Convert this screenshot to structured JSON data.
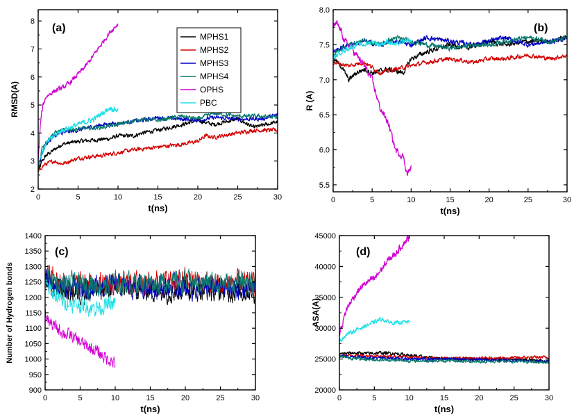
{
  "colors": {
    "MPHS1": "#000000",
    "MPHS2": "#d40000",
    "MPHS3": "#0000c0",
    "MPHS4": "#0a7a6e",
    "OPHS": "#d000d0",
    "PBC": "#1ee0e6"
  },
  "legend": [
    "MPHS1",
    "MPHS2",
    "MPHS3",
    "MPHS4",
    "OPHS",
    "PBC"
  ],
  "chart_data": [
    {
      "id": "a",
      "type": "line",
      "panel_label": "(a)",
      "xlabel": "t(ns)",
      "ylabel": "RMSD(A)",
      "xlim": [
        0,
        30
      ],
      "ylim": [
        2,
        8.4
      ],
      "xticks": [
        0,
        5,
        10,
        15,
        20,
        25,
        30
      ],
      "yticks": [
        2,
        3,
        4,
        5,
        6,
        7,
        8
      ],
      "legend_position": "top-center",
      "noise": [
        0.06,
        0.06,
        0.06,
        0.06,
        0.07,
        0.08
      ],
      "series": [
        {
          "name": "MPHS1",
          "x": [
            0,
            0.5,
            1,
            2,
            3,
            5,
            7,
            9,
            10,
            12,
            13,
            15,
            18,
            20,
            22,
            25,
            27,
            30
          ],
          "y": [
            2.6,
            3.0,
            3.2,
            3.4,
            3.6,
            3.7,
            3.75,
            3.8,
            3.9,
            3.9,
            4.0,
            4.1,
            4.3,
            4.45,
            4.3,
            4.5,
            4.2,
            4.4
          ]
        },
        {
          "name": "MPHS2",
          "x": [
            0,
            0.5,
            1,
            2,
            3,
            5,
            8,
            10,
            12,
            15,
            18,
            20,
            21,
            22,
            25,
            27,
            30
          ],
          "y": [
            2.6,
            2.8,
            2.9,
            3.0,
            2.9,
            3.1,
            3.2,
            3.3,
            3.4,
            3.5,
            3.6,
            3.7,
            3.9,
            3.85,
            4.0,
            4.1,
            4.1
          ]
        },
        {
          "name": "MPHS3",
          "x": [
            0,
            0.5,
            1,
            2,
            3,
            5,
            8,
            10,
            13,
            15,
            18,
            20,
            22,
            25,
            28,
            30
          ],
          "y": [
            2.7,
            3.3,
            3.6,
            3.9,
            4.0,
            4.1,
            4.3,
            4.35,
            4.45,
            4.55,
            4.5,
            4.45,
            4.55,
            4.5,
            4.5,
            4.65
          ]
        },
        {
          "name": "MPHS4",
          "x": [
            0,
            0.5,
            1,
            2,
            3,
            5,
            8,
            10,
            13,
            15,
            18,
            20,
            22,
            25,
            28,
            30
          ],
          "y": [
            2.7,
            3.5,
            3.7,
            4.0,
            4.1,
            4.15,
            4.2,
            4.3,
            4.5,
            4.45,
            4.6,
            4.5,
            4.7,
            4.6,
            4.6,
            4.55
          ]
        },
        {
          "name": "OPHS",
          "x": [
            0,
            0.3,
            0.6,
            1,
            1.5,
            2,
            3,
            4,
            5,
            6,
            7,
            8,
            9,
            10
          ],
          "y": [
            3.0,
            4.4,
            5.0,
            5.3,
            5.4,
            5.5,
            5.6,
            5.8,
            6.1,
            6.4,
            6.8,
            7.2,
            7.6,
            7.9
          ]
        },
        {
          "name": "PBC",
          "x": [
            0,
            0.5,
            1,
            2,
            3,
            4,
            5,
            6,
            7,
            8,
            9,
            10
          ],
          "y": [
            2.9,
            3.3,
            3.6,
            3.9,
            4.1,
            4.2,
            4.3,
            4.4,
            4.5,
            4.7,
            4.9,
            4.8
          ]
        }
      ]
    },
    {
      "id": "b",
      "type": "line",
      "panel_label": "(b)",
      "xlabel": "t(ns)",
      "ylabel": "R (A)",
      "xlim": [
        0,
        30
      ],
      "ylim": [
        5.4,
        8.0
      ],
      "xticks": [
        0,
        5,
        10,
        15,
        20,
        25,
        30
      ],
      "yticks": [
        5.5,
        6.0,
        6.5,
        7.0,
        7.5,
        8.0
      ],
      "noise": [
        0.03,
        0.025,
        0.03,
        0.03,
        0.04,
        0.03
      ],
      "series": [
        {
          "name": "MPHS1",
          "x": [
            0,
            1,
            2,
            3,
            4,
            5,
            7,
            9,
            10,
            12,
            15,
            17,
            20,
            22,
            25,
            28,
            30
          ],
          "y": [
            7.3,
            7.2,
            7.0,
            7.1,
            7.15,
            7.1,
            7.15,
            7.1,
            7.3,
            7.4,
            7.5,
            7.45,
            7.55,
            7.5,
            7.55,
            7.55,
            7.6
          ]
        },
        {
          "name": "MPHS2",
          "x": [
            0,
            2,
            4,
            6,
            8,
            10,
            12,
            15,
            18,
            20,
            22,
            25,
            28,
            30
          ],
          "y": [
            7.25,
            7.2,
            7.25,
            7.1,
            7.15,
            7.2,
            7.25,
            7.3,
            7.25,
            7.3,
            7.3,
            7.35,
            7.3,
            7.35
          ]
        },
        {
          "name": "MPHS3",
          "x": [
            0,
            1,
            2,
            4,
            6,
            8,
            10,
            12,
            15,
            18,
            20,
            22,
            25,
            28,
            30
          ],
          "y": [
            7.4,
            7.45,
            7.5,
            7.55,
            7.5,
            7.55,
            7.5,
            7.6,
            7.55,
            7.5,
            7.55,
            7.6,
            7.5,
            7.55,
            7.6
          ]
        },
        {
          "name": "MPHS4",
          "x": [
            0,
            1,
            2,
            4,
            6,
            8,
            10,
            12,
            15,
            18,
            20,
            22,
            25,
            28,
            30
          ],
          "y": [
            7.35,
            7.45,
            7.5,
            7.55,
            7.5,
            7.6,
            7.55,
            7.5,
            7.45,
            7.5,
            7.5,
            7.55,
            7.6,
            7.55,
            7.6
          ]
        },
        {
          "name": "OPHS",
          "x": [
            0,
            0.5,
            1,
            1.5,
            2,
            3,
            4,
            5,
            6,
            7,
            7.5,
            8,
            9,
            9.5,
            10
          ],
          "y": [
            7.75,
            7.8,
            7.7,
            7.55,
            7.5,
            7.35,
            7.2,
            7.0,
            6.6,
            6.4,
            6.2,
            6.0,
            5.9,
            5.65,
            5.75
          ]
        },
        {
          "name": "PBC",
          "x": [
            0,
            1,
            2,
            3,
            4,
            5,
            6,
            7,
            8,
            9,
            10
          ],
          "y": [
            7.3,
            7.4,
            7.45,
            7.5,
            7.5,
            7.55,
            7.5,
            7.55,
            7.5,
            7.55,
            7.55
          ]
        }
      ]
    },
    {
      "id": "c",
      "type": "line",
      "panel_label": "(c)",
      "xlabel": "t(ns)",
      "ylabel": "Number of Hydrogen bonds",
      "xlim": [
        0,
        30
      ],
      "ylim": [
        900,
        1400
      ],
      "xticks": [
        0,
        5,
        10,
        15,
        20,
        25,
        30
      ],
      "yticks": [
        900,
        950,
        1000,
        1050,
        1100,
        1150,
        1200,
        1250,
        1300,
        1350,
        1400
      ],
      "noise": [
        30,
        30,
        30,
        30,
        18,
        22
      ],
      "series": [
        {
          "name": "MPHS1",
          "x": [
            0,
            2,
            5,
            8,
            10,
            15,
            18,
            20,
            25,
            30
          ],
          "y": [
            1250,
            1225,
            1215,
            1225,
            1235,
            1225,
            1220,
            1230,
            1220,
            1220
          ]
        },
        {
          "name": "MPHS2",
          "x": [
            0,
            2,
            5,
            8,
            10,
            15,
            20,
            25,
            30
          ],
          "y": [
            1280,
            1250,
            1240,
            1245,
            1245,
            1250,
            1255,
            1245,
            1245
          ]
        },
        {
          "name": "MPHS3",
          "x": [
            0,
            2,
            5,
            8,
            10,
            15,
            20,
            25,
            30
          ],
          "y": [
            1260,
            1235,
            1225,
            1230,
            1235,
            1235,
            1230,
            1230,
            1230
          ]
        },
        {
          "name": "MPHS4",
          "x": [
            0,
            2,
            5,
            8,
            10,
            15,
            20,
            25,
            30
          ],
          "y": [
            1270,
            1245,
            1240,
            1240,
            1245,
            1250,
            1250,
            1245,
            1250
          ]
        },
        {
          "name": "OPHS",
          "x": [
            0,
            1,
            2,
            3,
            4,
            5,
            6,
            7,
            8,
            9,
            10
          ],
          "y": [
            1140,
            1110,
            1095,
            1080,
            1070,
            1055,
            1040,
            1030,
            1015,
            1000,
            985
          ]
        },
        {
          "name": "PBC",
          "x": [
            0,
            1,
            2,
            3,
            4,
            5,
            6,
            7,
            8,
            9,
            10
          ],
          "y": [
            1240,
            1215,
            1195,
            1185,
            1180,
            1175,
            1170,
            1165,
            1170,
            1175,
            1180
          ]
        }
      ]
    },
    {
      "id": "d",
      "type": "line",
      "panel_label": "(d)",
      "xlabel": "t(ns)",
      "ylabel": "ASA(A)",
      "xlim": [
        0,
        30
      ],
      "ylim": [
        20000,
        45000
      ],
      "xticks": [
        0,
        5,
        10,
        15,
        20,
        25,
        30
      ],
      "yticks": [
        20000,
        25000,
        30000,
        35000,
        40000,
        45000
      ],
      "noise": [
        220,
        200,
        200,
        200,
        450,
        260
      ],
      "series": [
        {
          "name": "MPHS1",
          "x": [
            0,
            2,
            4,
            6,
            8,
            10,
            12,
            15,
            20,
            25,
            30
          ],
          "y": [
            25800,
            26000,
            25900,
            26000,
            25900,
            25600,
            25300,
            25100,
            25000,
            24900,
            24700
          ]
        },
        {
          "name": "MPHS2",
          "x": [
            0,
            2,
            5,
            8,
            10,
            15,
            20,
            25,
            30
          ],
          "y": [
            25500,
            25600,
            25500,
            25400,
            25300,
            25100,
            25100,
            25200,
            25300
          ]
        },
        {
          "name": "MPHS3",
          "x": [
            0,
            2,
            5,
            8,
            10,
            15,
            20,
            25,
            30
          ],
          "y": [
            25500,
            25400,
            25200,
            25100,
            25000,
            25000,
            24900,
            24800,
            24600
          ]
        },
        {
          "name": "MPHS4",
          "x": [
            0,
            2,
            5,
            8,
            10,
            15,
            20,
            25,
            30
          ],
          "y": [
            25400,
            25100,
            24900,
            24800,
            24700,
            24700,
            24600,
            24600,
            24500
          ]
        },
        {
          "name": "OPHS",
          "x": [
            0,
            0.5,
            1,
            2,
            3,
            4,
            5,
            6,
            7,
            8,
            9,
            10
          ],
          "y": [
            29000,
            31000,
            33000,
            35000,
            36500,
            37500,
            38000,
            39500,
            41000,
            42000,
            43500,
            44800
          ]
        },
        {
          "name": "PBC",
          "x": [
            0,
            1,
            2,
            3,
            4,
            5,
            6,
            7,
            8,
            9,
            10
          ],
          "y": [
            27800,
            29000,
            29500,
            30000,
            30500,
            31000,
            31500,
            31000,
            30800,
            31000,
            31000
          ]
        }
      ]
    }
  ]
}
